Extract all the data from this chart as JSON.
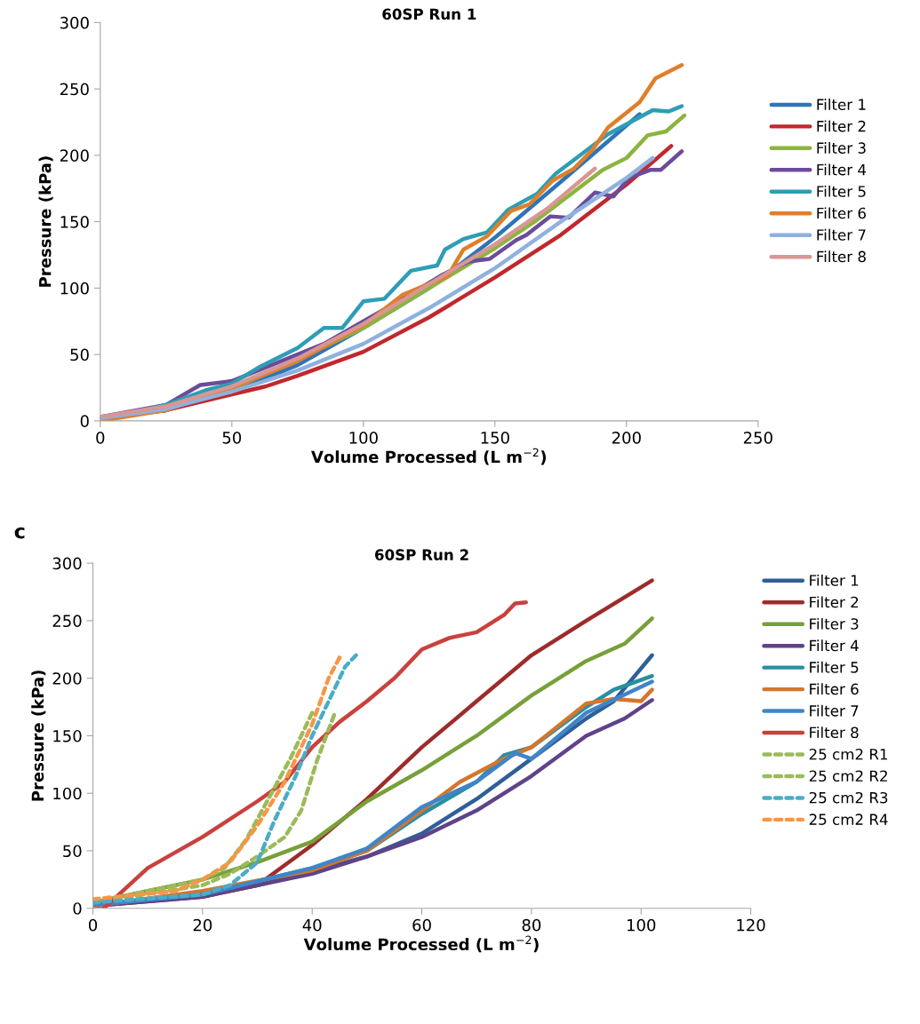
{
  "chart_data": [
    {
      "type": "line",
      "title": "60SP Run 1",
      "xlabel": "Volume Processed (L m$^{−2}$)",
      "ylabel": "Pressure (kPa)",
      "xlim": [
        0,
        250
      ],
      "xticks": [
        0,
        50,
        100,
        150,
        200,
        250
      ],
      "ylim": [
        0,
        300
      ],
      "yticks": [
        0,
        50,
        100,
        150,
        200,
        250,
        300
      ],
      "grid": false,
      "legend": "right",
      "line_style": "solid",
      "marker": "none",
      "series": [
        {
          "name": "Filter 1",
          "color": "#2e75b6",
          "x": [
            0,
            25,
            50,
            75,
            100,
            125,
            150,
            175,
            205
          ],
          "values": [
            3,
            8,
            22,
            42,
            70,
            100,
            138,
            180,
            231
          ]
        },
        {
          "name": "Filter 2",
          "color": "#c0282d",
          "x": [
            0,
            25,
            50,
            63,
            75,
            100,
            125,
            150,
            175,
            200,
            217
          ],
          "values": [
            2,
            8,
            20,
            26,
            34,
            52,
            78,
            108,
            140,
            178,
            207
          ]
        },
        {
          "name": "Filter 3",
          "color": "#8cb43f",
          "x": [
            0,
            25,
            50,
            75,
            100,
            125,
            150,
            165,
            175,
            185,
            191,
            200,
            208,
            215,
            222
          ],
          "values": [
            2,
            9,
            24,
            46,
            70,
            100,
            130,
            150,
            165,
            180,
            189,
            198,
            215,
            218,
            230
          ]
        },
        {
          "name": "Filter 4",
          "color": "#6b4c9a",
          "x": [
            0,
            25,
            38,
            50,
            60,
            75,
            85,
            100,
            115,
            130,
            140,
            148,
            158,
            162,
            171,
            178,
            188,
            195,
            201,
            209,
            213,
            221
          ],
          "values": [
            3,
            12,
            27,
            30,
            38,
            50,
            58,
            75,
            92,
            110,
            120,
            122,
            136,
            140,
            154,
            153,
            172,
            169,
            183,
            189,
            189,
            203
          ]
        },
        {
          "name": "Filter 5",
          "color": "#2e9db5",
          "x": [
            0,
            25,
            40,
            50,
            60,
            75,
            85,
            92,
            100,
            108,
            118,
            128,
            131,
            138,
            147,
            155,
            166,
            173,
            193,
            210,
            216,
            221
          ],
          "values": [
            1,
            12,
            23,
            28,
            40,
            55,
            70,
            70,
            90,
            92,
            113,
            117,
            129,
            137,
            142,
            159,
            171,
            186,
            216,
            234,
            233,
            237
          ]
        },
        {
          "name": "Filter 6",
          "color": "#e07f2a",
          "x": [
            0,
            25,
            50,
            75,
            100,
            115,
            132,
            138,
            147,
            156,
            163,
            172,
            180,
            187,
            193,
            205,
            211,
            221
          ],
          "values": [
            0,
            8,
            25,
            45,
            72,
            95,
            109,
            129,
            139,
            158,
            163,
            181,
            190,
            204,
            221,
            240,
            258,
            268
          ]
        },
        {
          "name": "Filter 7",
          "color": "#8eb1df",
          "x": [
            0,
            25,
            50,
            75,
            100,
            125,
            150,
            175,
            200,
            210
          ],
          "values": [
            2,
            9,
            22,
            38,
            58,
            85,
            115,
            150,
            183,
            198
          ]
        },
        {
          "name": "Filter 8",
          "color": "#d99694",
          "x": [
            0,
            25,
            50,
            75,
            100,
            125,
            150,
            170,
            188
          ],
          "values": [
            3,
            11,
            26,
            47,
            73,
            103,
            133,
            160,
            190
          ]
        }
      ]
    },
    {
      "type": "line",
      "title": "60SP Run 2",
      "annotations": [
        "c"
      ],
      "xlabel": "Volume Processed (L m$^{−2}$)",
      "ylabel": "Pressure (kPa)",
      "xlim": [
        0,
        120
      ],
      "xticks": [
        0,
        20,
        40,
        60,
        80,
        100,
        120
      ],
      "ylim": [
        0,
        300
      ],
      "yticks": [
        0,
        50,
        100,
        150,
        200,
        250,
        300
      ],
      "grid": false,
      "legend": "right",
      "line_style": "solid",
      "marker": "none",
      "series": [
        {
          "name": "Filter 1",
          "color": "#2f5f98",
          "x": [
            0,
            20,
            30,
            40,
            50,
            60,
            70,
            80,
            90,
            95,
            102
          ],
          "values": [
            3,
            12,
            20,
            32,
            45,
            65,
            95,
            130,
            165,
            180,
            220
          ]
        },
        {
          "name": "Filter 2",
          "color": "#9e2b2b",
          "x": [
            0,
            20,
            30,
            40,
            50,
            60,
            70,
            80,
            90,
            102
          ],
          "values": [
            2,
            10,
            20,
            55,
            95,
            140,
            180,
            220,
            250,
            285
          ]
        },
        {
          "name": "Filter 3",
          "color": "#77a03a",
          "x": [
            0,
            10,
            20,
            30,
            40,
            50,
            60,
            70,
            80,
            90,
            97,
            102
          ],
          "values": [
            5,
            15,
            25,
            40,
            58,
            93,
            120,
            150,
            185,
            215,
            230,
            252
          ]
        },
        {
          "name": "Filter 4",
          "color": "#5f4388",
          "x": [
            0,
            20,
            40,
            50,
            60,
            70,
            80,
            90,
            97,
            102
          ],
          "values": [
            2,
            10,
            30,
            45,
            62,
            85,
            115,
            150,
            165,
            181
          ]
        },
        {
          "name": "Filter 5",
          "color": "#2a8fa0",
          "x": [
            0,
            20,
            40,
            50,
            60,
            70,
            75,
            80,
            90,
            95,
            102
          ],
          "values": [
            3,
            12,
            35,
            50,
            82,
            110,
            133,
            140,
            175,
            190,
            202
          ]
        },
        {
          "name": "Filter 6",
          "color": "#d4762c",
          "x": [
            0,
            20,
            40,
            50,
            60,
            67,
            75,
            80,
            90,
            95,
            100,
            102
          ],
          "values": [
            2,
            15,
            33,
            50,
            85,
            110,
            130,
            140,
            178,
            182,
            180,
            190
          ]
        },
        {
          "name": "Filter 7",
          "color": "#3f85c9",
          "x": [
            0,
            20,
            40,
            50,
            60,
            70,
            77,
            80,
            90,
            102
          ],
          "values": [
            3,
            12,
            35,
            52,
            88,
            110,
            135,
            130,
            170,
            197
          ]
        },
        {
          "name": "Filter 8",
          "color": "#c9413e",
          "x": [
            2,
            10,
            20,
            30,
            35,
            40,
            45,
            50,
            55,
            60,
            65,
            70,
            75,
            77,
            79
          ],
          "values": [
            0,
            35,
            62,
            93,
            110,
            140,
            162,
            180,
            200,
            225,
            235,
            240,
            255,
            265,
            266
          ]
        },
        {
          "name": "25 cm2 R1",
          "color": "#9bbb59",
          "line_style": "dashed",
          "x": [
            0,
            20,
            25,
            30,
            35,
            38,
            41,
            44
          ],
          "values": [
            5,
            20,
            30,
            45,
            62,
            85,
            130,
            168
          ]
        },
        {
          "name": "25 cm2 R2",
          "color": "#9bbb59",
          "line_style": "dashed",
          "x": [
            0,
            20,
            24,
            28,
            32,
            36,
            40
          ],
          "values": [
            5,
            25,
            35,
            60,
            95,
            130,
            170
          ]
        },
        {
          "name": "25 cm2 R3",
          "color": "#4bacc6",
          "line_style": "dashed",
          "x": [
            0,
            20,
            25,
            30,
            33,
            37,
            40,
            44,
            46,
            48
          ],
          "values": [
            5,
            12,
            20,
            40,
            75,
            115,
            150,
            190,
            210,
            220
          ]
        },
        {
          "name": "25 cm2 R4",
          "color": "#f79646",
          "line_style": "dashed",
          "x": [
            0,
            15,
            20,
            25,
            30,
            35,
            40,
            43,
            45
          ],
          "values": [
            8,
            15,
            25,
            40,
            72,
            110,
            160,
            200,
            218
          ]
        }
      ]
    }
  ]
}
